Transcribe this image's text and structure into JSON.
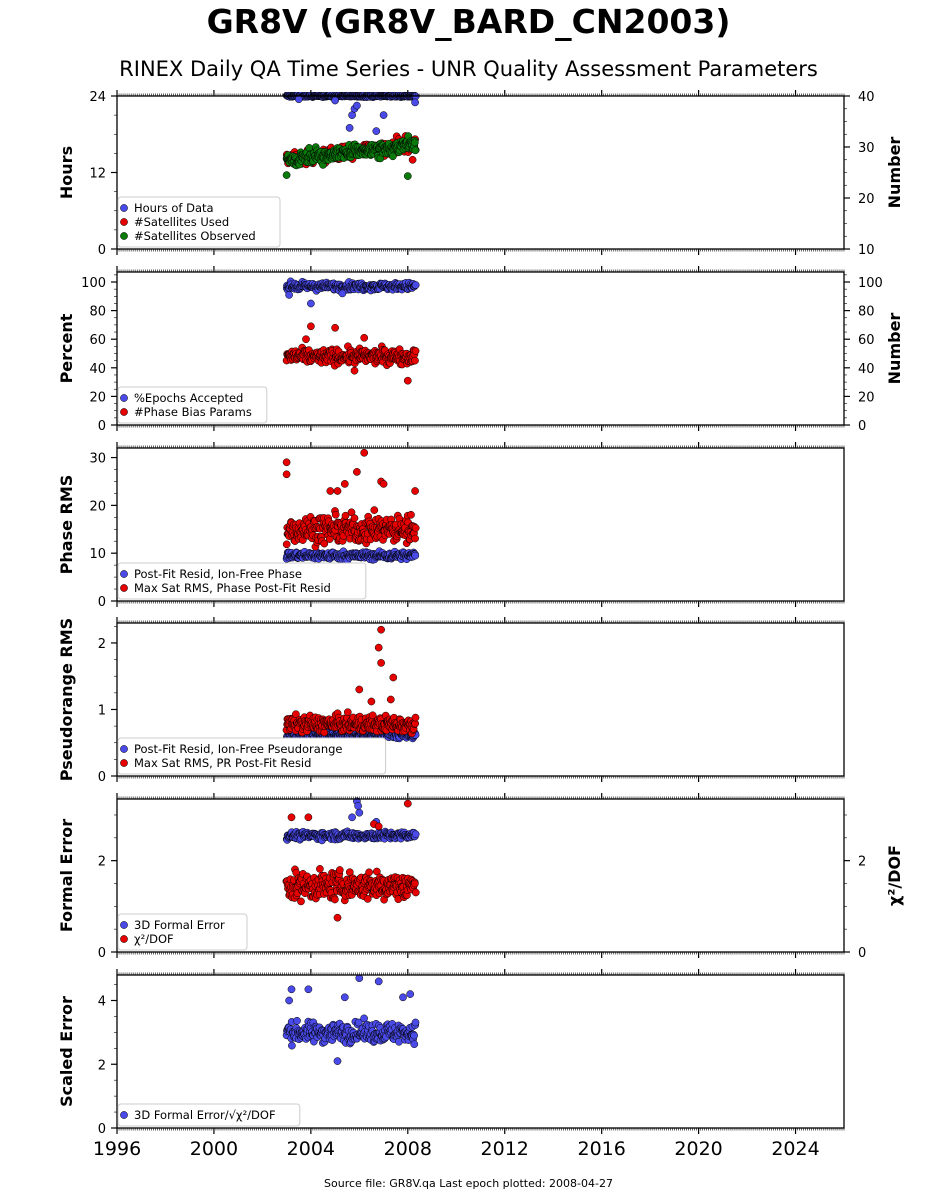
{
  "title": "GR8V (GR8V_BARD_CN2003)",
  "subtitle": "RINEX Daily QA Time Series - UNR Quality Assessment Parameters",
  "footer": "Source file: GR8V.qa Last epoch plotted: 2008-04-27",
  "colors": {
    "blue": "#4a4ae8",
    "red": "#e60000",
    "green": "#0a7a0a"
  },
  "chart_data": {
    "type": "scatter",
    "x_axis": {
      "range": [
        1996,
        2026
      ],
      "ticks": [
        1996,
        2000,
        2004,
        2008,
        2012,
        2016,
        2020,
        2024
      ],
      "tick_labels": [
        "1996",
        "2000",
        "2004",
        "2008",
        "2012",
        "2016",
        "2020",
        "2024"
      ]
    },
    "data_span": [
      2003.0,
      2008.32
    ],
    "panels": [
      {
        "ylabel": "Hours",
        "ylim": [
          0,
          24
        ],
        "yticks": [
          0,
          12,
          24
        ],
        "ytick_labels": [
          "0",
          "12",
          "24"
        ],
        "ylabel_right": "Number",
        "ylim_right": [
          10,
          40
        ],
        "yticks_right": [
          10,
          20,
          30,
          40
        ],
        "ytick_labels_right": [
          "10",
          "20",
          "30",
          "40"
        ],
        "legend_position": "bottom-left",
        "series": [
          {
            "name": "Hours of Data",
            "color": "blue",
            "axis": "left",
            "base": 24,
            "spread": 0.15,
            "outliers": [
              [
                2005.5,
                16
              ],
              [
                2005.6,
                19
              ],
              [
                2005.7,
                21
              ],
              [
                2005.8,
                22
              ],
              [
                2005.9,
                22.5
              ],
              [
                2006.7,
                18.5
              ],
              [
                2007.0,
                21
              ],
              [
                2008.3,
                23
              ],
              [
                2005.0,
                23.3
              ],
              [
                2003.5,
                23.5
              ]
            ]
          },
          {
            "name": "#Satellites Used",
            "color": "red",
            "axis": "right",
            "base": 27.5,
            "trend": 3.0,
            "spread": 0.9,
            "outliers": [
              [
                2008.2,
                27.5
              ]
            ]
          },
          {
            "name": "#Satellites Observed",
            "color": "green",
            "axis": "right",
            "base": 27.5,
            "trend": 3.0,
            "spread": 0.9,
            "outliers": [
              [
                2008.0,
                24.3
              ],
              [
                2003.0,
                24.5
              ]
            ]
          }
        ]
      },
      {
        "ylabel": "Percent",
        "ylim": [
          0,
          107
        ],
        "yticks": [
          0,
          20,
          40,
          60,
          80,
          100
        ],
        "ytick_labels": [
          "0",
          "20",
          "40",
          "60",
          "80",
          "100"
        ],
        "ylabel_right": "Number",
        "ylim_right": [
          0,
          107
        ],
        "yticks_right": [
          0,
          20,
          40,
          60,
          80,
          100
        ],
        "ytick_labels_right": [
          "0",
          "20",
          "40",
          "60",
          "80",
          "100"
        ],
        "legend_position": "bottom-left",
        "series": [
          {
            "name": "%Epochs Accepted",
            "color": "blue",
            "axis": "left",
            "base": 97,
            "spread": 2.5,
            "outliers": [
              [
                2004.0,
                85
              ],
              [
                2003.1,
                91
              ],
              [
                2005.3,
                92
              ]
            ]
          },
          {
            "name": "#Phase Bias Params",
            "color": "red",
            "axis": "right",
            "base": 48,
            "spread": 5,
            "outliers": [
              [
                2004.0,
                69
              ],
              [
                2005.0,
                68
              ],
              [
                2006.2,
                61
              ],
              [
                2008.0,
                31
              ],
              [
                2005.8,
                38
              ],
              [
                2003.8,
                60
              ]
            ]
          }
        ]
      },
      {
        "ylabel": "Phase RMS",
        "ylim": [
          0,
          32
        ],
        "yticks": [
          0,
          10,
          20,
          30
        ],
        "ytick_labels": [
          "0",
          "10",
          "20",
          "30"
        ],
        "legend_position": "bottom-left",
        "series": [
          {
            "name": "Post-Fit Resid, Ion-Free Phase",
            "color": "blue",
            "axis": "left",
            "base": 9.5,
            "spread": 0.8,
            "outliers": [
              [
                2005.3,
                7
              ]
            ]
          },
          {
            "name": "Max Sat RMS, Phase Post-Fit Resid",
            "color": "red",
            "axis": "left",
            "base": 15,
            "spread": 2.8,
            "outliers": [
              [
                2003.0,
                29
              ],
              [
                2003.0,
                26.5
              ],
              [
                2006.2,
                31
              ],
              [
                2005.9,
                27
              ],
              [
                2006.9,
                25
              ],
              [
                2007.0,
                24.5
              ],
              [
                2004.8,
                23
              ],
              [
                2008.3,
                23
              ],
              [
                2005.4,
                24.5
              ],
              [
                2005.1,
                23
              ]
            ]
          }
        ]
      },
      {
        "ylabel": "Pseudorange RMS",
        "ylim": [
          0,
          2.3
        ],
        "yticks": [
          0,
          1,
          2
        ],
        "ytick_labels": [
          "0",
          "1",
          "2"
        ],
        "legend_position": "bottom-left",
        "series": [
          {
            "name": "Post-Fit Resid, Ion-Free Pseudorange",
            "color": "blue",
            "axis": "left",
            "base": 0.62,
            "spread": 0.05,
            "outliers": []
          },
          {
            "name": "Max Sat RMS, PR Post-Fit Resid",
            "color": "red",
            "axis": "left",
            "base": 0.78,
            "spread": 0.12,
            "outliers": [
              [
                2006.9,
                2.2
              ],
              [
                2006.8,
                1.93
              ],
              [
                2006.9,
                1.7
              ],
              [
                2007.4,
                1.48
              ],
              [
                2006.0,
                1.3
              ],
              [
                2006.5,
                1.12
              ],
              [
                2007.3,
                1.15
              ]
            ]
          }
        ]
      },
      {
        "ylabel": "Formal Error",
        "ylim": [
          0,
          3.35
        ],
        "yticks": [
          0,
          2
        ],
        "ytick_labels": [
          "0",
          "2"
        ],
        "ylabel_right": "χ²/DOF",
        "ylim_right": [
          0,
          3.35
        ],
        "yticks_right": [
          0,
          2
        ],
        "ytick_labels_right": [
          "0",
          "2"
        ],
        "legend_position": "bottom-left",
        "series": [
          {
            "name": "3D Formal Error",
            "color": "blue",
            "axis": "left",
            "base": 2.55,
            "spread": 0.08,
            "outliers": [
              [
                2005.9,
                3.3
              ],
              [
                2005.95,
                3.2
              ],
              [
                2006.0,
                3.05
              ],
              [
                2005.7,
                2.95
              ],
              [
                2006.7,
                2.85
              ]
            ]
          },
          {
            "name": "χ²/DOF",
            "color": "red",
            "axis": "right",
            "base": 1.45,
            "spread": 0.3,
            "outliers": [
              [
                2003.2,
                2.95
              ],
              [
                2003.9,
                2.95
              ],
              [
                2008.0,
                3.25
              ],
              [
                2005.1,
                0.75
              ],
              [
                2006.6,
                2.8
              ],
              [
                2006.8,
                2.75
              ]
            ]
          }
        ]
      },
      {
        "ylabel": "Scaled Error",
        "ylim": [
          0,
          4.8
        ],
        "yticks": [
          0,
          2,
          4
        ],
        "ytick_labels": [
          "0",
          "2",
          "4"
        ],
        "legend_position": "bottom-left",
        "series": [
          {
            "name": "3D Formal Error/√χ²/DOF",
            "color": "blue",
            "axis": "left",
            "base": 3.0,
            "spread": 0.3,
            "outliers": [
              [
                2003.2,
                4.35
              ],
              [
                2003.9,
                4.35
              ],
              [
                2006.0,
                4.7
              ],
              [
                2006.8,
                4.6
              ],
              [
                2005.1,
                2.1
              ],
              [
                2007.8,
                4.1
              ],
              [
                2008.1,
                4.2
              ],
              [
                2005.4,
                4.1
              ],
              [
                2003.1,
                4.0
              ]
            ]
          }
        ]
      }
    ]
  }
}
